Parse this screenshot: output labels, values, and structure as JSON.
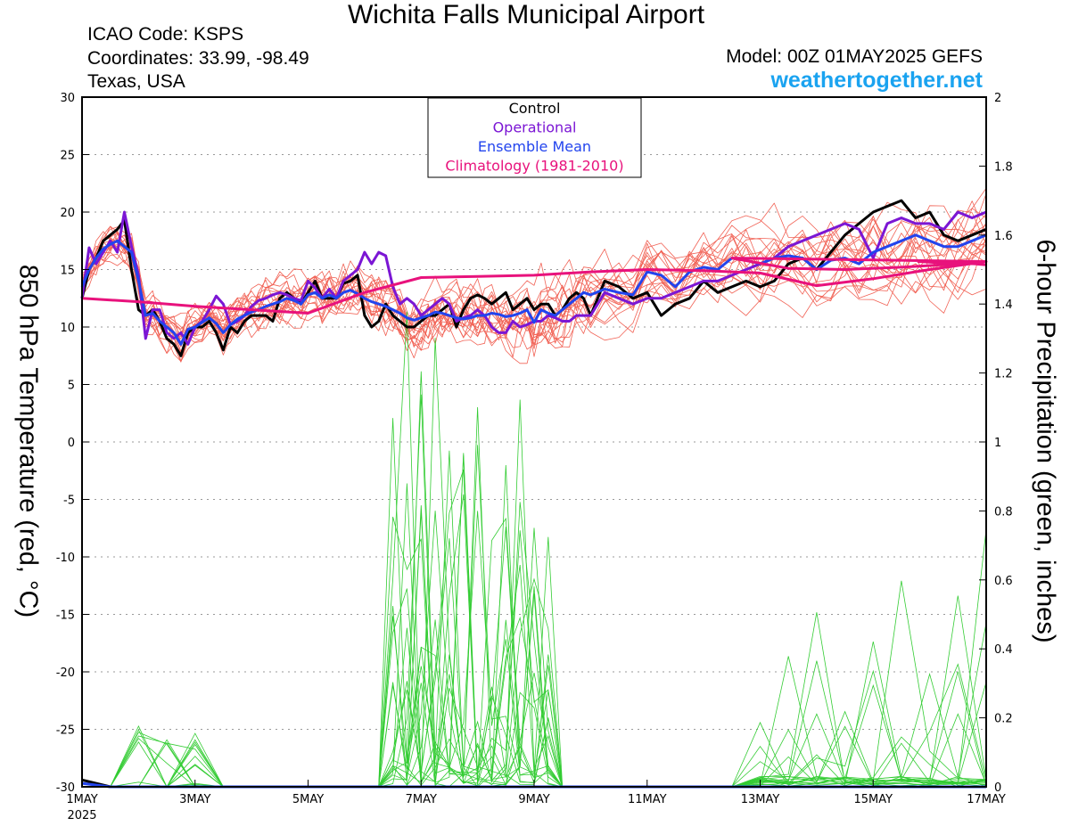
{
  "header": {
    "title": "Wichita Falls Municipal Airport",
    "icao": "ICAO Code: KSPS",
    "coordinates": "Coordinates: 33.99, -98.49",
    "region": "Texas, USA",
    "model": "Model: 00Z 01MAY2025 GEFS",
    "site": "weathertogether.net"
  },
  "colors": {
    "control": "#000000",
    "operational": "#7b16d4",
    "ensemble_mean": "#2244ee",
    "climatology": "#e8127c",
    "members_temperature": "#ee3b2b",
    "members_precipitation": "#33cc33",
    "site": "#1aa3f0"
  },
  "chart_data": {
    "type": "line",
    "ylabel": "850 hPa Temperature (red, °C)",
    "y2label": "6-hour Precipitation (green, inches)",
    "ylim": [
      -30,
      30
    ],
    "y2lim": [
      0,
      2
    ],
    "yticks": [
      "30",
      "25",
      "20",
      "15",
      "10",
      "5",
      "0",
      "-5",
      "-10",
      "-15",
      "-20",
      "-25",
      "-30"
    ],
    "y2ticks": [
      "2",
      "1.8",
      "1.6",
      "1.4",
      "1.2",
      "1",
      "0.8",
      "0.6",
      "0.4",
      "0.2",
      "0"
    ],
    "x_unit": "days since 1MAY 2025 00Z",
    "xlim": [
      0,
      16
    ],
    "xticks": [
      {
        "x": 0,
        "label": "1MAY",
        "sub": "2025"
      },
      {
        "x": 2,
        "label": "3MAY"
      },
      {
        "x": 4,
        "label": "5MAY"
      },
      {
        "x": 6,
        "label": "7MAY"
      },
      {
        "x": 8,
        "label": "9MAY"
      },
      {
        "x": 10,
        "label": "11MAY"
      },
      {
        "x": 12,
        "label": "13MAY"
      },
      {
        "x": 14,
        "label": "15MAY"
      },
      {
        "x": 16,
        "label": "17MAY"
      }
    ],
    "grid": true,
    "legend": {
      "position": "top-center",
      "entries": [
        "Control",
        "Operational",
        "Ensemble Mean",
        "Climatology (1981-2010)"
      ]
    },
    "x_temperature": [
      0,
      0.125,
      0.25,
      0.375,
      0.5,
      0.625,
      0.75,
      0.875,
      1,
      1.125,
      1.25,
      1.375,
      1.5,
      1.625,
      1.75,
      1.875,
      2,
      2.125,
      2.25,
      2.375,
      2.5,
      2.625,
      2.75,
      2.875,
      3,
      3.125,
      3.25,
      3.375,
      3.5,
      3.625,
      3.75,
      3.875,
      4,
      4.125,
      4.25,
      4.375,
      4.5,
      4.625,
      4.75,
      4.875,
      5,
      5.125,
      5.25,
      5.375,
      5.5,
      5.625,
      5.75,
      5.875,
      6,
      6.125,
      6.25,
      6.375,
      6.5,
      6.625,
      6.75,
      6.875,
      7,
      7.125,
      7.25,
      7.375,
      7.5,
      7.625,
      7.75,
      7.875,
      8,
      8.125,
      8.25,
      8.375,
      8.5,
      8.625,
      8.75,
      8.875,
      9,
      9.25,
      9.5,
      9.75,
      10,
      10.25,
      10.5,
      10.75,
      11,
      11.25,
      11.5,
      11.75,
      12,
      12.25,
      12.5,
      12.75,
      13,
      13.25,
      13.5,
      13.75,
      14,
      14.25,
      14.5,
      14.75,
      15,
      15.25,
      15.5,
      15.75,
      16
    ],
    "series_temperature": [
      {
        "name": "Control",
        "values": [
          12.5,
          15.0,
          16.0,
          17.5,
          18.0,
          18.5,
          19.3,
          15.0,
          11.5,
          11.0,
          11.5,
          10.5,
          9.0,
          8.5,
          7.5,
          9.5,
          10.0,
          10.0,
          10.5,
          9.5,
          8.0,
          10.0,
          9.5,
          10.5,
          11.0,
          11.0,
          11.0,
          10.5,
          12.5,
          13.0,
          12.5,
          12.0,
          13.0,
          14.0,
          12.5,
          12.5,
          12.5,
          13.8,
          14.0,
          14.5,
          11.0,
          10.0,
          10.5,
          12.0,
          11.0,
          10.5,
          10.0,
          10.0,
          10.5,
          11.0,
          11.0,
          11.5,
          12.0,
          10.0,
          11.5,
          12.5,
          12.8,
          12.5,
          12.0,
          12.5,
          13.0,
          11.5,
          12.0,
          12.5,
          11.5,
          12.0,
          12.0,
          11.0,
          11.5,
          12.5,
          13.0,
          12.5,
          11.0,
          14.0,
          13.5,
          12.5,
          13.0,
          11.0,
          12.0,
          12.5,
          14.0,
          13.0,
          13.5,
          14.0,
          13.5,
          14.0,
          15.5,
          16.0,
          15.0,
          16.5,
          18.0,
          19.0,
          20.0,
          20.5,
          21.0,
          19.5,
          20.0,
          18.0,
          17.5,
          18.0,
          18.5
        ]
      },
      {
        "name": "Operational",
        "values": [
          12.5,
          16.9,
          15.5,
          16.5,
          17.5,
          16.5,
          20.0,
          17.0,
          14.5,
          9.0,
          11.5,
          11.5,
          9.5,
          9.0,
          9.5,
          8.5,
          10.0,
          10.5,
          11.5,
          12.7,
          12.0,
          10.2,
          10.5,
          11.0,
          11.8,
          12.3,
          12.5,
          12.8,
          13.0,
          12.8,
          12.5,
          12.3,
          14.0,
          13.4,
          12.5,
          13.3,
          12.5,
          14.0,
          14.5,
          15.0,
          16.5,
          15.5,
          16.5,
          16.2,
          13.5,
          12.0,
          12.5,
          12.0,
          11.0,
          11.5,
          12.0,
          12.5,
          12.0,
          10.5,
          10.8,
          11.0,
          11.5,
          11.0,
          10.0,
          9.5,
          9.5,
          10.5,
          10.0,
          10.2,
          10.5,
          10.5,
          11.0,
          10.8,
          10.5,
          10.5,
          11.0,
          11.0,
          11.0,
          13.0,
          12.5,
          12.0,
          12.5,
          12.5,
          13.0,
          13.5,
          14.0,
          14.0,
          14.5,
          15.0,
          15.5,
          16.0,
          17.0,
          17.5,
          18.0,
          18.5,
          19.0,
          18.5,
          16.0,
          19.0,
          19.5,
          19.0,
          19.0,
          18.5,
          20.0,
          19.5,
          20.0
        ]
      },
      {
        "name": "Ensemble Mean",
        "values": [
          13.5,
          15.0,
          16.0,
          16.8,
          17.2,
          17.5,
          17.0,
          16.5,
          14.0,
          11.0,
          11.2,
          10.5,
          10.0,
          9.5,
          8.5,
          9.8,
          10.0,
          10.4,
          10.8,
          10.3,
          9.5,
          10.2,
          10.7,
          11.0,
          11.3,
          11.5,
          11.8,
          12.0,
          12.2,
          12.5,
          12.3,
          12.0,
          12.8,
          13.0,
          12.5,
          12.8,
          12.5,
          13.0,
          13.2,
          12.9,
          12.5,
          12.2,
          12.0,
          11.8,
          11.5,
          11.2,
          10.8,
          10.6,
          10.8,
          11.0,
          11.3,
          11.2,
          11.0,
          10.8,
          10.7,
          10.8,
          11.0,
          11.0,
          11.2,
          11.1,
          10.9,
          11.0,
          11.2,
          11.5,
          10.4,
          11.5,
          11.2,
          11.0,
          11.5,
          12.0,
          12.5,
          13.0,
          12.8,
          13.3,
          13.0,
          12.8,
          14.8,
          14.5,
          13.5,
          14.8,
          15.2,
          15.0,
          16.0,
          15.8,
          15.5,
          16.0,
          16.2,
          16.0,
          15.0,
          15.8,
          16.0,
          15.5,
          16.5,
          17.0,
          17.5,
          18.0,
          17.5,
          17.0,
          17.0,
          17.5,
          18.0
        ]
      },
      {
        "name": "Climatology (1981-2010)",
        "values": [
          12.5,
          12.2,
          11.8,
          11.5,
          11.2,
          13.0,
          14.3,
          14.4,
          14.5,
          14.8,
          15.0,
          14.9,
          14.7,
          13.6,
          14.2,
          15.0,
          15.7,
          16.0,
          15.1,
          15.0,
          15.2,
          15.5,
          15.7,
          15.5,
          15.4
        ]
      }
    ],
    "x_climatology": [
      0,
      1,
      2,
      3,
      4,
      5,
      6,
      7,
      8,
      9,
      10,
      11,
      12,
      13,
      14,
      15,
      16,
      11.5,
      12.5,
      13.5,
      14.5,
      15.5,
      14.8,
      15.8,
      16.0
    ],
    "x_precipitation": [
      0,
      0.5,
      1,
      1.5,
      2,
      2.5,
      3,
      3.5,
      4,
      4.5,
      5,
      5.25,
      5.5,
      5.75,
      6,
      6.25,
      6.5,
      6.75,
      7,
      7.25,
      7.5,
      7.75,
      8,
      8.25,
      8.5,
      8.75,
      9,
      9.25,
      9.5,
      9.75,
      10,
      10.5,
      11,
      11.5,
      12,
      12.5,
      13,
      13.5,
      14,
      14.5,
      15,
      15.5,
      16
    ],
    "series_precipitation": [
      {
        "name": "Control",
        "values": [
          0.02,
          0.0,
          0.0,
          0.0,
          0.0,
          0.0,
          0.0,
          0.0,
          0.0,
          0.0,
          0.0,
          0.0,
          0.0,
          0.0,
          0.0,
          0.0,
          0.0,
          0.0,
          0.0,
          0.0,
          0.0,
          0.0,
          0.0,
          0.0,
          0.0,
          0.0,
          0.0,
          0.0,
          0.0,
          0.0,
          0.0,
          0.0,
          0.0,
          0.0,
          0.0,
          0.0,
          0.0,
          0.0,
          0.0,
          0.0,
          0.0,
          0.0,
          0.0
        ]
      },
      {
        "name": "Ensemble Mean",
        "values": [
          0.01,
          0.0,
          0.0,
          0.0,
          0.0,
          0.0,
          0.0,
          0.0,
          0.0,
          0.0,
          0.0,
          0.0,
          0.0,
          0.0,
          0.0,
          0.0,
          0.0,
          0.0,
          0.0,
          0.0,
          0.0,
          0.0,
          0.0,
          0.0,
          0.0,
          0.0,
          0.0,
          0.0,
          0.0,
          0.0,
          0.0,
          0.0,
          0.0,
          0.0,
          0.0,
          0.0,
          0.0,
          0.0,
          0.0,
          0.0,
          0.0,
          0.0,
          0.0
        ]
      }
    ]
  }
}
